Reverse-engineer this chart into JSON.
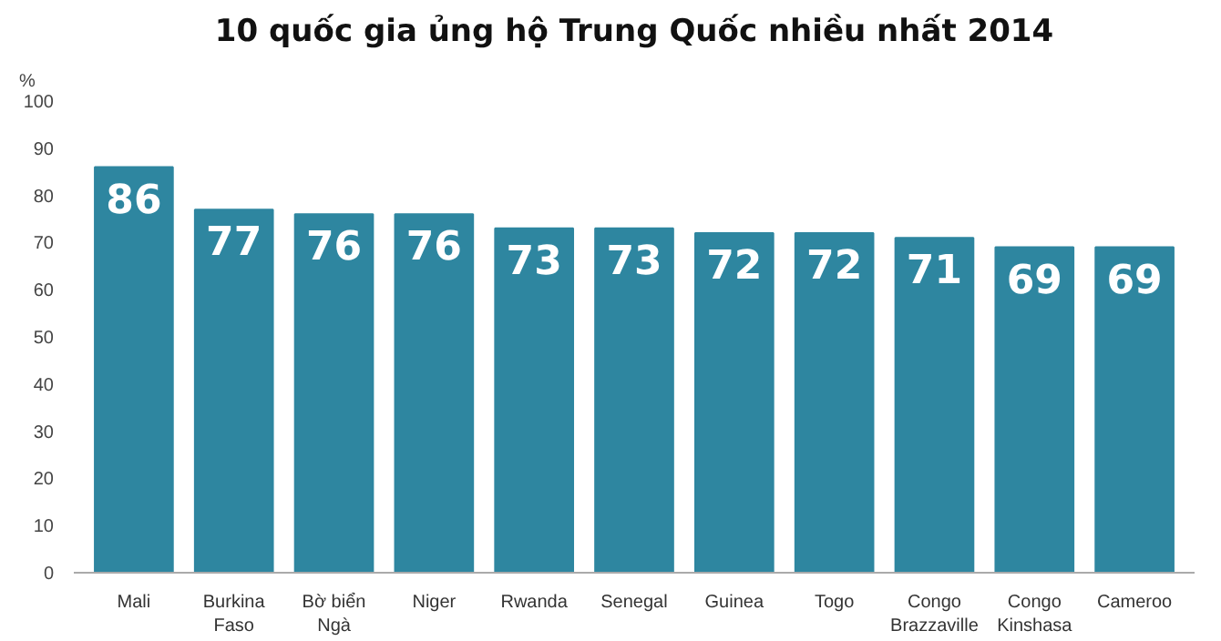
{
  "chart_data": {
    "type": "bar",
    "title": "10 quốc gia ủng hộ Trung Quốc nhiều nhất 2014",
    "ylabel": "%",
    "categories": [
      "Mali",
      "Burkina\nFaso",
      "Bờ biển\nNgà",
      "Niger",
      "Rwanda",
      "Senegal",
      "Guinea",
      "Togo",
      "Congo\nBrazzaville",
      "Congo\nKinshasa",
      "Cameroo"
    ],
    "values": [
      86,
      77,
      76,
      76,
      73,
      73,
      72,
      72,
      71,
      69,
      69
    ],
    "color": "#2e86a0",
    "ylim": [
      0,
      100
    ],
    "yticks": [
      0,
      10,
      20,
      30,
      40,
      50,
      60,
      70,
      80,
      90,
      100
    ],
    "grid": false,
    "data_labels": true
  }
}
